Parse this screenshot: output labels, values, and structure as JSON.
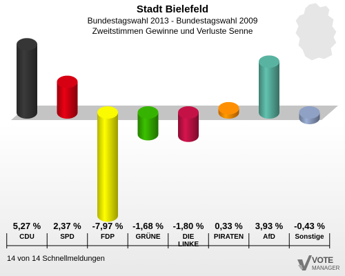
{
  "header": {
    "title": "Stadt Bielefeld",
    "subtitle": "Bundestagswahl 2013 - Bundestagswahl 2009",
    "subsubtitle": "Zweitstimmen Gewinne und Verluste Senne"
  },
  "chart_data": {
    "type": "bar",
    "categories": [
      "CDU",
      "SPD",
      "FDP",
      "GRÜNE",
      "DIE LINKE",
      "PIRATEN",
      "AfD",
      "Sonstige"
    ],
    "category_lines": [
      [
        "CDU"
      ],
      [
        "SPD"
      ],
      [
        "FDP"
      ],
      [
        "GRÜNE"
      ],
      [
        "DIE",
        "LINKE"
      ],
      [
        "PIRATEN"
      ],
      [
        "AfD"
      ],
      [
        "Sonstige"
      ]
    ],
    "values": [
      5.27,
      2.37,
      -7.97,
      -1.68,
      -1.8,
      0.33,
      3.93,
      -0.43
    ],
    "value_labels": [
      "5,27 %",
      "2,37 %",
      "-7,97 %",
      "-1,68 %",
      "-1,80 %",
      "0,33 %",
      "3,93 %",
      "-0,43 %"
    ],
    "colors": [
      "#333333",
      "#cc0011",
      "#eeee00",
      "#33aa00",
      "#bb1144",
      "#ff8800",
      "#55aa99",
      "#8899bb"
    ]
  },
  "footer": {
    "text": "14 von 14 Schnellmeldungen"
  },
  "logo": {
    "text": "VOTE",
    "subtext": "MANAGER"
  }
}
